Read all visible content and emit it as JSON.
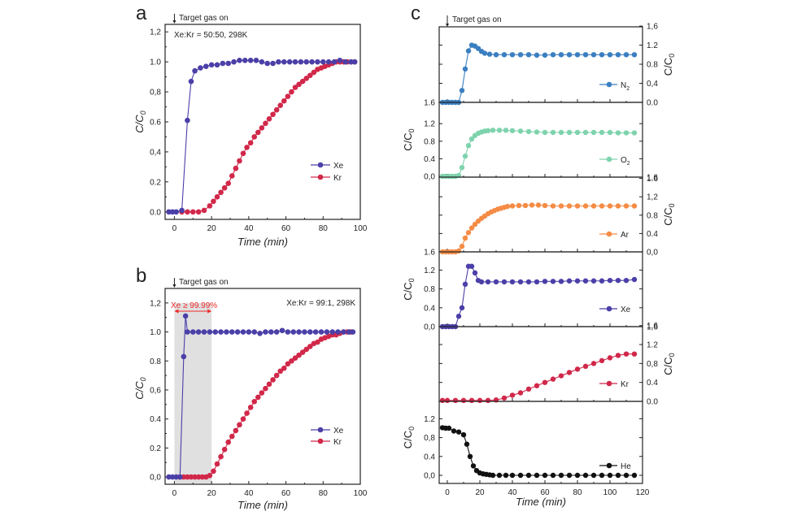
{
  "figure": {
    "annotation": "Target gas on",
    "xlabel": "Time (min)",
    "ylabel": "C/C",
    "ylabel_sub": "0"
  },
  "chart_data": [
    {
      "panel": "a",
      "type": "line",
      "title": "",
      "annotation": "Target gas on",
      "condition": "Xe:Kr = 50:50, 298K",
      "xlabel": "Time (min)",
      "ylabel": "C/C0",
      "xlim": [
        -5,
        100
      ],
      "ylim": [
        -0.05,
        1.25
      ],
      "xticks": [
        0,
        20,
        40,
        60,
        80,
        100
      ],
      "yticks": [
        0.0,
        0.2,
        0.4,
        0.6,
        0.8,
        1.0,
        1.2
      ],
      "ytick_labels": [
        "0.0",
        "0.2",
        "0,4",
        "0.6",
        "0,8",
        "1.0",
        "1,2"
      ],
      "legend_position": "center-right",
      "series": [
        {
          "name": "Xe",
          "color": "#4b3fa8",
          "x": [
            -3,
            -1,
            1,
            4,
            7,
            9,
            11,
            14,
            17,
            20,
            23,
            26,
            29,
            32,
            35,
            38,
            41,
            44,
            47,
            50,
            53,
            56,
            59,
            62,
            65,
            68,
            71,
            74,
            77,
            80,
            83,
            86,
            89,
            92,
            95,
            97
          ],
          "y": [
            0.0,
            0.0,
            0.0,
            0.01,
            0.61,
            0.87,
            0.94,
            0.96,
            0.97,
            0.98,
            0.98,
            0.99,
            0.99,
            1.0,
            1.01,
            1.01,
            1.01,
            1.01,
            1.0,
            0.99,
            0.99,
            1.0,
            1.0,
            1.0,
            1.0,
            1.0,
            1.0,
            1.0,
            1.0,
            1.0,
            1.0,
            1.0,
            1.01,
            1.0,
            1.0,
            1.0
          ]
        },
        {
          "name": "Kr",
          "color": "#d1284a",
          "x": [
            4,
            7,
            10,
            13,
            16,
            19,
            21,
            23,
            25,
            27,
            29,
            31,
            33,
            35,
            37,
            39,
            41,
            43,
            45,
            47,
            49,
            51,
            53,
            55,
            57,
            59,
            61,
            63,
            65,
            67,
            69,
            71,
            73,
            75,
            77,
            79,
            81,
            83,
            85,
            87,
            89,
            91,
            93,
            95,
            97
          ],
          "y": [
            0.0,
            0.0,
            0.0,
            0.0,
            0.01,
            0.04,
            0.07,
            0.1,
            0.13,
            0.16,
            0.19,
            0.24,
            0.29,
            0.34,
            0.39,
            0.43,
            0.46,
            0.5,
            0.53,
            0.56,
            0.59,
            0.62,
            0.65,
            0.68,
            0.71,
            0.74,
            0.77,
            0.8,
            0.83,
            0.85,
            0.87,
            0.89,
            0.91,
            0.93,
            0.95,
            0.96,
            0.97,
            0.98,
            0.99,
            1.0,
            1.0,
            1.0,
            1.0,
            1.0,
            1.0
          ]
        }
      ]
    },
    {
      "panel": "b",
      "type": "line",
      "title": "",
      "annotation": "Target gas on",
      "condition": "Xe:Kr = 99:1, 298K",
      "purity_label": "Xe ≥ 99.99%",
      "purity_color": "#ee2a2a",
      "shaded_region": [
        0,
        20
      ],
      "shade_color": "#e0e0e0",
      "xlabel": "Time (min)",
      "ylabel": "C/C0",
      "xlim": [
        -5,
        100
      ],
      "ylim": [
        -0.05,
        1.3
      ],
      "xticks": [
        0,
        20,
        40,
        60,
        80,
        100
      ],
      "yticks": [
        0.0,
        0.2,
        0.4,
        0.6,
        0.8,
        1.0,
        1.2
      ],
      "ytick_labels": [
        "0,0",
        "0.2",
        "0.4",
        "0,6",
        "0.8",
        "1.0",
        "1,2"
      ],
      "legend_position": "center-right",
      "series": [
        {
          "name": "Xe",
          "color": "#4b3fa8",
          "x": [
            -3,
            -1,
            1,
            3,
            5,
            6,
            7,
            10,
            13,
            16,
            19,
            22,
            25,
            28,
            31,
            34,
            37,
            40,
            43,
            46,
            49,
            52,
            55,
            58,
            61,
            64,
            67,
            70,
            73,
            76,
            79,
            82,
            85,
            88,
            91,
            94,
            96
          ],
          "y": [
            0.0,
            0.0,
            0.0,
            0.0,
            0.83,
            1.11,
            1.0,
            1.0,
            1.0,
            1.0,
            1.0,
            1.0,
            1.0,
            1.0,
            1.0,
            1.0,
            1.0,
            1.0,
            1.0,
            0.99,
            1.0,
            1.0,
            1.0,
            1.01,
            1.0,
            1.0,
            1.0,
            1.0,
            1.0,
            1.0,
            1.0,
            1.0,
            1.0,
            1.0,
            1.0,
            1.0,
            1.0
          ]
        },
        {
          "name": "Kr",
          "color": "#d1284a",
          "x": [
            3,
            5,
            7,
            9,
            11,
            13,
            15,
            17,
            19,
            21,
            23,
            25,
            27,
            29,
            31,
            33,
            35,
            37,
            39,
            41,
            43,
            45,
            47,
            49,
            51,
            53,
            55,
            57,
            59,
            61,
            63,
            65,
            67,
            69,
            71,
            73,
            75,
            77,
            79,
            81,
            83,
            85,
            87,
            89,
            91,
            93,
            95
          ],
          "y": [
            0.0,
            0.0,
            0.0,
            0.0,
            0.0,
            0.0,
            0.0,
            0.0,
            0.01,
            0.04,
            0.09,
            0.14,
            0.19,
            0.24,
            0.28,
            0.32,
            0.36,
            0.4,
            0.44,
            0.48,
            0.52,
            0.55,
            0.58,
            0.61,
            0.64,
            0.67,
            0.7,
            0.73,
            0.75,
            0.78,
            0.8,
            0.82,
            0.84,
            0.86,
            0.88,
            0.9,
            0.92,
            0.93,
            0.95,
            0.96,
            0.97,
            0.98,
            0.98,
            0.99,
            1.0,
            1.0,
            1.0
          ]
        }
      ]
    },
    {
      "panel": "c",
      "type": "line",
      "title": "",
      "annotation": "Target gas on",
      "xlabel": "Time (min)",
      "ylabel": "C/C0",
      "xlim": [
        -5,
        120
      ],
      "xticks": [
        0,
        20,
        40,
        60,
        80,
        100,
        120
      ],
      "subplots": [
        {
          "name": "N2",
          "legend": "N",
          "legend_sub": "2",
          "color": "#3a7fc1",
          "axis_side": "right",
          "ylim": [
            0,
            1.6
          ],
          "yticks": [
            0.0,
            0.4,
            0.8,
            1.2,
            1.6
          ],
          "ytick_labels": [
            "0.0",
            "0,4",
            "0.8",
            "1.2",
            "1,6"
          ],
          "extra_left_label": "1.6",
          "x": [
            -3,
            -1,
            1,
            3,
            5,
            7,
            9,
            11,
            13,
            15,
            17,
            19,
            21,
            23,
            26,
            30,
            35,
            40,
            45,
            50,
            55,
            60,
            65,
            70,
            75,
            80,
            85,
            90,
            95,
            100,
            105,
            110,
            115
          ],
          "y": [
            0.0,
            0.0,
            0.0,
            0.0,
            0.0,
            0.0,
            0.25,
            0.7,
            1.08,
            1.2,
            1.18,
            1.13,
            1.07,
            1.03,
            1.01,
            1.0,
            1.0,
            1.0,
            1.0,
            1.0,
            0.99,
            0.99,
            1.0,
            1.0,
            1.0,
            1.0,
            1.0,
            1.0,
            1.0,
            1.0,
            1.0,
            1.0,
            1.0
          ]
        },
        {
          "name": "O2",
          "legend": "O",
          "legend_sub": "2",
          "color": "#7ed3ad",
          "axis_side": "left",
          "ylim": [
            0,
            1.3
          ],
          "yticks": [
            0.0,
            0.4,
            0.8,
            1.2
          ],
          "ytick_labels": [
            "0,0",
            "0.4",
            "0.8",
            "1.2"
          ],
          "extra_right_label": "1.6",
          "x": [
            -3,
            -1,
            1,
            3,
            5,
            7,
            9,
            11,
            13,
            15,
            17,
            19,
            21,
            23,
            25,
            28,
            32,
            36,
            40,
            45,
            50,
            55,
            60,
            65,
            70,
            75,
            80,
            85,
            90,
            95,
            100,
            105,
            110,
            115
          ],
          "y": [
            0.0,
            0.0,
            0.0,
            0.0,
            0.0,
            0.02,
            0.2,
            0.46,
            0.7,
            0.85,
            0.93,
            0.98,
            1.01,
            1.03,
            1.04,
            1.05,
            1.05,
            1.05,
            1.04,
            1.03,
            1.02,
            1.01,
            1.0,
            1.0,
            1.0,
            1.0,
            1.0,
            1.0,
            1.0,
            1.0,
            1.0,
            0.99,
            0.99,
            0.99
          ]
        },
        {
          "name": "Ar",
          "legend": "Ar",
          "legend_sub": "",
          "color": "#f58c45",
          "axis_side": "right",
          "ylim": [
            0,
            1.6
          ],
          "yticks": [
            0.0,
            0.4,
            0.8,
            1.2,
            1.6
          ],
          "ytick_labels": [
            "0,0",
            "0.4",
            "0.8",
            "1,2",
            "1.6"
          ],
          "extra_left_label": "1.6",
          "x": [
            -3,
            -1,
            1,
            3,
            5,
            7,
            9,
            11,
            13,
            15,
            17,
            19,
            21,
            23,
            25,
            27,
            29,
            31,
            33,
            35,
            37,
            40,
            44,
            48,
            52,
            56,
            60,
            65,
            70,
            75,
            80,
            85,
            90,
            95,
            100,
            105,
            110,
            115
          ],
          "y": [
            0.0,
            0.0,
            0.0,
            0.0,
            0.0,
            0.02,
            0.12,
            0.3,
            0.42,
            0.52,
            0.6,
            0.67,
            0.73,
            0.78,
            0.83,
            0.87,
            0.9,
            0.93,
            0.95,
            0.97,
            0.99,
            1.0,
            1.01,
            1.01,
            1.02,
            1.02,
            1.01,
            1.0,
            1.0,
            1.0,
            1.0,
            1.0,
            1.0,
            1.0,
            1.0,
            1.0,
            1.0,
            1.0
          ]
        },
        {
          "name": "Xe",
          "legend": "Xe",
          "legend_sub": "",
          "color": "#4b3fa8",
          "axis_side": "left",
          "ylim": [
            0,
            1.3
          ],
          "yticks": [
            0.0,
            0.4,
            0.8,
            1.2
          ],
          "ytick_labels": [
            "0,0",
            "0.4",
            "0.8",
            "1.2"
          ],
          "extra_right_label": "1,6",
          "x": [
            -3,
            -1,
            1,
            3,
            5,
            7,
            9,
            11,
            13,
            15,
            17,
            19,
            21,
            25,
            30,
            35,
            40,
            45,
            50,
            55,
            60,
            65,
            70,
            75,
            80,
            85,
            90,
            95,
            100,
            105,
            110,
            115
          ],
          "y": [
            0.0,
            0.0,
            0.0,
            0.0,
            0.0,
            0.22,
            0.4,
            0.9,
            1.28,
            1.28,
            1.14,
            0.98,
            0.95,
            0.95,
            0.95,
            0.95,
            0.95,
            0.95,
            0.95,
            0.95,
            0.96,
            0.96,
            0.96,
            0.97,
            0.97,
            0.97,
            0.97,
            0.97,
            0.98,
            0.98,
            0.98,
            1.0
          ]
        },
        {
          "name": "Kr",
          "legend": "Kr",
          "legend_sub": "",
          "color": "#d1284a",
          "axis_side": "right",
          "ylim": [
            -0.05,
            1.6
          ],
          "yticks": [
            0.0,
            0.4,
            0.8,
            1.2,
            1.6
          ],
          "ytick_labels": [
            "0.0",
            "0.4",
            "0,8",
            "1.2",
            "1.6"
          ],
          "x": [
            -3,
            0,
            5,
            10,
            15,
            20,
            25,
            30,
            35,
            40,
            45,
            50,
            55,
            60,
            65,
            70,
            75,
            80,
            85,
            90,
            95,
            100,
            105,
            110,
            115
          ],
          "y": [
            0.02,
            0.02,
            0.02,
            0.02,
            0.02,
            0.02,
            0.02,
            0.03,
            0.07,
            0.13,
            0.18,
            0.26,
            0.33,
            0.4,
            0.47,
            0.54,
            0.61,
            0.68,
            0.74,
            0.8,
            0.86,
            0.92,
            0.97,
            1.0,
            1.0
          ]
        },
        {
          "name": "He",
          "legend": "He",
          "legend_sub": "",
          "color": "#111111",
          "axis_side": "left",
          "ylim": [
            -0.1,
            1.35
          ],
          "yticks": [
            0.0,
            0.4,
            0.8,
            1.2
          ],
          "ytick_labels": [
            "0,0",
            "0.4",
            "0,8",
            "1.2"
          ],
          "x": [
            -3,
            -1,
            1,
            4,
            7,
            10,
            12,
            14,
            16,
            18,
            20,
            22,
            24,
            26,
            28,
            32,
            36,
            40,
            45,
            50,
            55,
            60,
            65,
            70,
            75,
            80,
            85,
            90,
            95,
            100,
            105,
            110,
            115
          ],
          "y": [
            1.01,
            1.0,
            1.0,
            0.94,
            0.92,
            0.86,
            0.66,
            0.4,
            0.2,
            0.1,
            0.05,
            0.03,
            0.02,
            0.01,
            0.0,
            0.0,
            0.0,
            0.0,
            0.0,
            0.0,
            0.0,
            0.0,
            0.0,
            0.0,
            0.0,
            0.0,
            0.0,
            0.0,
            0.0,
            0.0,
            0.0,
            0.0,
            0.0
          ]
        }
      ]
    }
  ]
}
